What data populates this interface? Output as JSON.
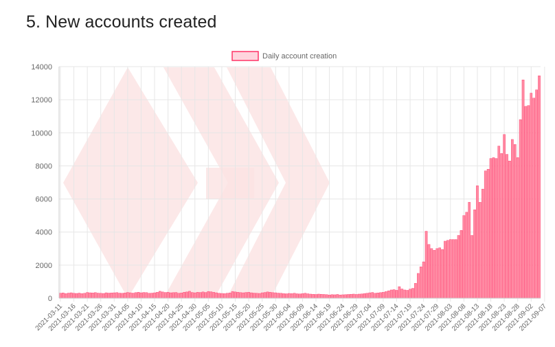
{
  "page": {
    "title": "5. New accounts created"
  },
  "colors": {
    "bar_fill": "#ff8aa2",
    "bar_stroke": "#ff3366",
    "grid": "#e6e6e6",
    "watermark": "#fbe2e2"
  },
  "watermark": "hive-logo",
  "chart_data": {
    "type": "bar",
    "title": "",
    "xlabel": "",
    "ylabel": "",
    "ylim": [
      0,
      14000
    ],
    "yticks": [
      0,
      2000,
      4000,
      6000,
      8000,
      10000,
      12000,
      14000
    ],
    "grid": true,
    "legend_position": "top-center",
    "x_start": "2021-03-11",
    "x_end": "2021-09-09",
    "tick_every_days": 5,
    "series": [
      {
        "name": "Daily account creation",
        "values": [
          300,
          320,
          280,
          310,
          330,
          300,
          290,
          310,
          280,
          300,
          350,
          330,
          320,
          340,
          310,
          300,
          290,
          330,
          310,
          320,
          330,
          340,
          310,
          300,
          320,
          350,
          330,
          310,
          340,
          360,
          330,
          350,
          340,
          300,
          310,
          330,
          360,
          420,
          380,
          350,
          360,
          330,
          340,
          350,
          300,
          320,
          360,
          380,
          420,
          350,
          330,
          360,
          350,
          380,
          350,
          410,
          390,
          360,
          330,
          300,
          290,
          280,
          300,
          320,
          410,
          380,
          360,
          340,
          330,
          350,
          360,
          330,
          310,
          300,
          290,
          330,
          350,
          380,
          360,
          340,
          330,
          310,
          300,
          280,
          270,
          290,
          280,
          300,
          270,
          260,
          280,
          300,
          270,
          250,
          240,
          230,
          250,
          240,
          230,
          220,
          200,
          220,
          210,
          230,
          200,
          210,
          220,
          230,
          240,
          250,
          230,
          250,
          260,
          280,
          300,
          330,
          350,
          300,
          320,
          340,
          360,
          400,
          450,
          500,
          520,
          480,
          700,
          560,
          500,
          480,
          550,
          600,
          900,
          1500,
          1900,
          2200,
          4050,
          3250,
          3000,
          2900,
          3000,
          3050,
          2950,
          3450,
          3500,
          3550,
          3550,
          3550,
          3800,
          4100,
          5000,
          5200,
          5800,
          3800,
          5350,
          6800,
          5800,
          6600,
          7700,
          7800,
          8450,
          8500,
          8450,
          9200,
          8750,
          9900,
          8700,
          8300,
          9600,
          9300,
          8500,
          10800,
          13200,
          11600,
          11650,
          12400,
          12100,
          12600,
          13450
        ]
      }
    ],
    "x_tick_labels": [
      "2021-03-11",
      "2021-03-16",
      "2021-03-21",
      "2021-03-26",
      "2021-03-31",
      "2021-04-05",
      "2021-04-10",
      "2021-04-15",
      "2021-04-20",
      "2021-04-25",
      "2021-04-30",
      "2021-05-05",
      "2021-05-10",
      "2021-05-15",
      "2021-05-20",
      "2021-05-25",
      "2021-05-30",
      "2021-06-04",
      "2021-06-09",
      "2021-06-14",
      "2021-06-19",
      "2021-06-24",
      "2021-06-29",
      "2021-07-04",
      "2021-07-09",
      "2021-07-14",
      "2021-07-19",
      "2021-07-24",
      "2021-07-29",
      "2021-08-03",
      "2021-08-08",
      "2021-08-13",
      "2021-08-18",
      "2021-08-23",
      "2021-08-28",
      "2021-09-02",
      "2021-09-07"
    ]
  }
}
